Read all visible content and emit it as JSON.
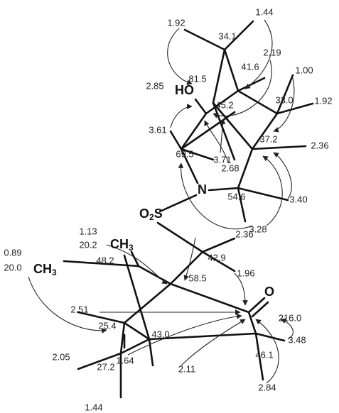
{
  "hydroxyl": "HO",
  "nitrogen": "N",
  "sulfonyl": {
    "main": "O",
    "sub": "2",
    "end": "S"
  },
  "methyl_upper": {
    "main": "CH",
    "sub": "3"
  },
  "methyl_left": {
    "main": "CH",
    "sub": "3"
  },
  "carbonyl_oxygen": "O",
  "top_labels": [
    "1.92",
    "1.44",
    "34.1",
    "2.19",
    "41.6",
    "1.00",
    "2.85",
    "81.5",
    "1.92",
    "33.0",
    "45.2",
    "3.61",
    "2.36",
    "37.2",
    "69.5",
    "3.71",
    "2.68",
    "54.6",
    "3.40",
    "3.28"
  ],
  "bottom_labels": [
    "1.13",
    "20.2",
    "2.36",
    "0.89",
    "20.0",
    "48.2",
    "42.9",
    "1.96",
    "58.5",
    "2.51",
    "216.0",
    "25.4",
    "43.0",
    "3.48",
    "2.05",
    "46.1",
    "1.64",
    "27.2",
    "2.11",
    "2.84",
    "1.44"
  ]
}
